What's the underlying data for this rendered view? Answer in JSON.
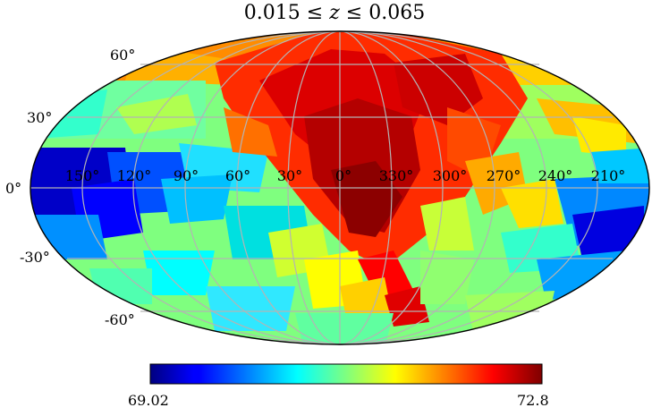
{
  "title": {
    "pre": "0.015 ≤ ",
    "var": "z",
    "post": " ≤ 0.065"
  },
  "map": {
    "projection": "mollweide",
    "colormap": "jet",
    "graticule_color": "#b4b4b4",
    "border_color": "#000000",
    "lat_labels": [
      "60°",
      "30°",
      "0°",
      "-30°",
      "-60°"
    ],
    "lon_labels": [
      "150°",
      "120°",
      "90°",
      "60°",
      "30°",
      "0°",
      "330°",
      "300°",
      "270°",
      "240°",
      "210°"
    ]
  },
  "colorbar": {
    "min_label": "69.02",
    "max_label": "72.8",
    "min": 69.02,
    "max": 72.8
  }
}
